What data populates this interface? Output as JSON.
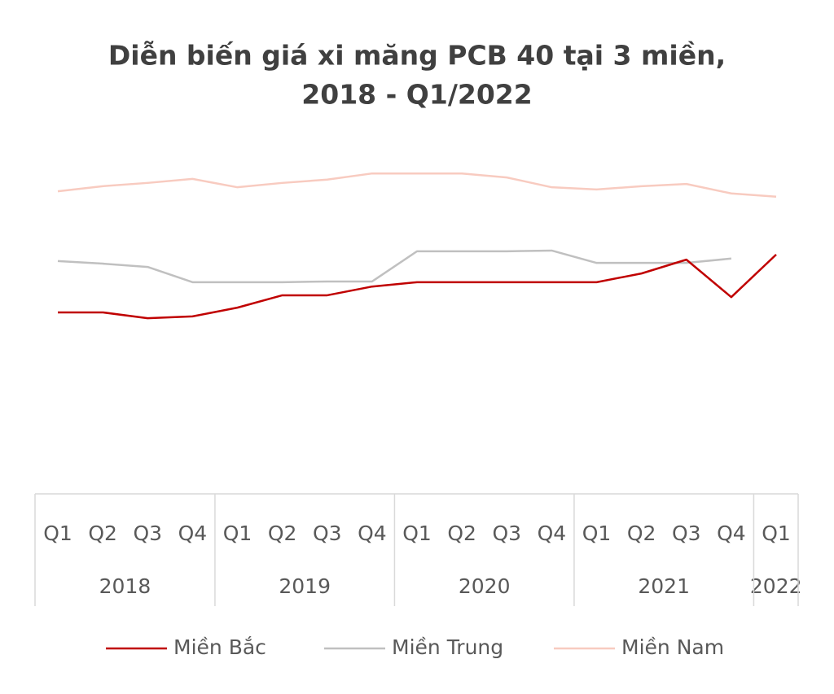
{
  "chart_data": {
    "type": "line",
    "title": [
      "Diễn biến giá xi măng PCB 40 tại 3 miền,",
      "2018 - Q1/2022"
    ],
    "categories": [
      "Q1",
      "Q2",
      "Q3",
      "Q4",
      "Q1",
      "Q2",
      "Q3",
      "Q4",
      "Q1",
      "Q2",
      "Q3",
      "Q4",
      "Q1",
      "Q2",
      "Q3",
      "Q4",
      "Q1"
    ],
    "category_groups": [
      "2018",
      "2018",
      "2018",
      "2018",
      "2019",
      "2019",
      "2019",
      "2019",
      "2020",
      "2020",
      "2020",
      "2020",
      "2021",
      "2021",
      "2021",
      "2021",
      "2022"
    ],
    "ylim": [
      0,
      100
    ],
    "series": [
      {
        "name": "Miền Bắc",
        "color": "#c00000",
        "values": [
          49.9,
          49.9,
          48.3,
          48.8,
          51.2,
          54.6,
          54.6,
          57.0,
          58.2,
          58.2,
          58.2,
          58.2,
          58.2,
          60.6,
          64.4,
          54.1,
          65.8
        ]
      },
      {
        "name": "Miền Trung",
        "color": "#c0c0c0",
        "values": [
          64.0,
          63.3,
          62.4,
          58.2,
          58.2,
          58.2,
          58.4,
          58.4,
          66.7,
          66.7,
          66.7,
          66.9,
          63.5,
          63.5,
          63.5,
          64.7,
          null
        ]
      },
      {
        "name": "Miền Nam",
        "color": "#f8cbc0",
        "values": [
          83.2,
          84.6,
          85.5,
          86.6,
          84.3,
          85.5,
          86.4,
          88.1,
          88.1,
          88.1,
          87.0,
          84.3,
          83.7,
          84.6,
          85.2,
          82.6,
          81.7
        ]
      }
    ]
  }
}
